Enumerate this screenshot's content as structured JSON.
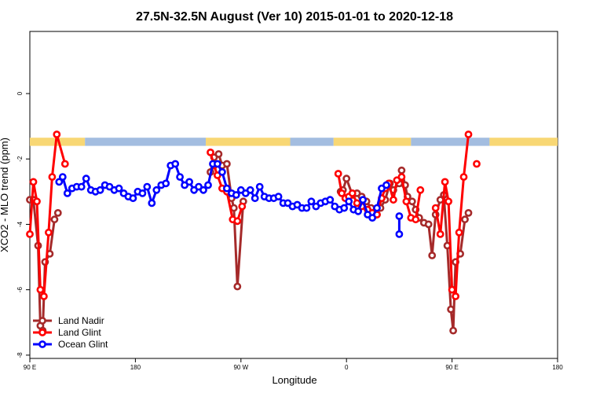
{
  "chart_data": {
    "type": "line",
    "title": "27.5N-32.5N August (Ver 10)   2015-01-01 to 2020-12-18",
    "xlabel": "Longitude",
    "ylabel": "XCO2 - MLO trend (ppm)",
    "x_ticks": [
      {
        "value": 90,
        "label": "90 E"
      },
      {
        "value": 180,
        "label": "180"
      },
      {
        "value": 270,
        "label": "90 W"
      },
      {
        "value": 360,
        "label": "0"
      },
      {
        "value": 450,
        "label": "90 E"
      },
      {
        "value": 540,
        "label": "180"
      }
    ],
    "y_ticks": [
      0,
      -2,
      -4,
      -6,
      -8
    ],
    "xlim": [
      90,
      540
    ],
    "ylim": [
      -8.1,
      1.9
    ],
    "legend_position": "bottom-left",
    "colors": {
      "land_nadir": "#a52a2a",
      "land_glint": "#ff0000",
      "ocean_glint": "#0000ff",
      "land_band": "#f8d774",
      "ocean_band": "#a3bde0"
    },
    "surface_band": {
      "y_top": -1.35,
      "y_bottom": -1.6,
      "segments": [
        {
          "type": "land",
          "start": 90,
          "end": 137
        },
        {
          "type": "ocean",
          "start": 137,
          "end": 240
        },
        {
          "type": "land",
          "start": 240,
          "end": 312
        },
        {
          "type": "ocean",
          "start": 312,
          "end": 349
        },
        {
          "type": "land",
          "start": 349,
          "end": 415
        },
        {
          "type": "ocean",
          "start": 415,
          "end": 482
        },
        {
          "type": "land",
          "start": 482,
          "end": 540
        }
      ]
    },
    "series": [
      {
        "name": "Land Nadir",
        "key": "land_nadir",
        "segments": [
          [
            [
              90,
              -3.25
            ],
            [
              93,
              -3.25
            ],
            [
              97,
              -4.65
            ],
            [
              99,
              -7.1
            ],
            [
              101,
              -7.25
            ],
            [
              103,
              -5.15
            ],
            [
              107,
              -4.9
            ],
            [
              111,
              -3.85
            ],
            [
              114,
              -3.65
            ]
          ],
          [
            [
              244,
              -2.4
            ],
            [
              247,
              -1.95
            ],
            [
              251,
              -1.85
            ],
            [
              254,
              -2.2
            ],
            [
              258,
              -2.15
            ],
            [
              262,
              -3.2
            ],
            [
              264,
              -3.5
            ],
            [
              267,
              -5.9
            ],
            [
              272,
              -3.3
            ]
          ],
          [
            [
              355,
              -3.0
            ],
            [
              357,
              -2.95
            ],
            [
              360,
              -2.6
            ],
            [
              365,
              -3.1
            ],
            [
              369,
              -3.05
            ],
            [
              373,
              -3.15
            ],
            [
              377,
              -3.3
            ],
            [
              381,
              -3.5
            ],
            [
              383,
              -3.75
            ],
            [
              386,
              -3.7
            ],
            [
              389,
              -3.5
            ],
            [
              393,
              -3.25
            ],
            [
              397,
              -2.75
            ],
            [
              400,
              -2.95
            ],
            [
              405,
              -2.75
            ],
            [
              407,
              -2.35
            ],
            [
              410,
              -2.8
            ],
            [
              412,
              -3.15
            ],
            [
              416,
              -3.3
            ],
            [
              419,
              -3.55
            ],
            [
              422,
              -3.8
            ],
            [
              426,
              -3.95
            ],
            [
              430,
              -4.0
            ],
            [
              433,
              -4.95
            ],
            [
              436,
              -3.7
            ],
            [
              440,
              -3.25
            ],
            [
              443,
              -3.1
            ],
            [
              446,
              -4.65
            ],
            [
              449,
              -6.6
            ],
            [
              451,
              -7.25
            ],
            [
              453,
              -5.15
            ],
            [
              457,
              -4.9
            ],
            [
              461,
              -3.85
            ],
            [
              464,
              -3.65
            ]
          ]
        ]
      },
      {
        "name": "Land Glint",
        "key": "land_glint",
        "segments": [
          [
            [
              90,
              -4.3
            ],
            [
              93,
              -2.7
            ],
            [
              96,
              -3.3
            ],
            [
              99,
              -6.0
            ],
            [
              102,
              -6.2
            ],
            [
              106,
              -4.25
            ],
            [
              109,
              -2.55
            ],
            [
              113,
              -1.25
            ],
            [
              120,
              -2.15
            ]
          ],
          [
            [
              244,
              -1.8
            ],
            [
              247,
              -2.2
            ],
            [
              250,
              -2.5
            ],
            [
              254,
              -2.9
            ],
            [
              258,
              -3.0
            ],
            [
              263,
              -3.85
            ],
            [
              267,
              -3.9
            ],
            [
              271,
              -3.45
            ]
          ],
          [
            [
              353,
              -2.45
            ],
            [
              356,
              -3.05
            ],
            [
              359,
              -3.2
            ],
            [
              362,
              -3.15
            ],
            [
              365,
              -3.05
            ],
            [
              369,
              -3.35
            ],
            [
              373,
              -3.45
            ],
            [
              378,
              -3.55
            ],
            [
              382,
              -3.65
            ],
            [
              386,
              -3.7
            ],
            [
              390,
              -3.2
            ],
            [
              393,
              -2.9
            ],
            [
              396,
              -2.75
            ],
            [
              400,
              -3.25
            ],
            [
              403,
              -2.65
            ],
            [
              407,
              -2.55
            ],
            [
              411,
              -3.3
            ],
            [
              415,
              -3.8
            ],
            [
              419,
              -3.85
            ],
            [
              423,
              -2.95
            ]
          ],
          [
            [
              436,
              -3.5
            ],
            [
              440,
              -4.3
            ],
            [
              444,
              -2.7
            ],
            [
              447,
              -3.3
            ],
            [
              450,
              -6.0
            ],
            [
              453,
              -6.2
            ],
            [
              456,
              -4.25
            ],
            [
              460,
              -2.55
            ],
            [
              464,
              -1.25
            ]
          ],
          [
            [
              471,
              -2.15
            ]
          ]
        ]
      },
      {
        "name": "Ocean Glint",
        "key": "ocean_glint",
        "segments": [
          [
            [
              115,
              -2.7
            ],
            [
              118,
              -2.55
            ],
            [
              122,
              -3.05
            ],
            [
              126,
              -2.9
            ],
            [
              130,
              -2.85
            ],
            [
              134,
              -2.85
            ],
            [
              138,
              -2.6
            ],
            [
              142,
              -2.95
            ],
            [
              146,
              -3.0
            ],
            [
              150,
              -2.95
            ],
            [
              154,
              -2.8
            ],
            [
              158,
              -2.85
            ],
            [
              162,
              -2.95
            ],
            [
              166,
              -2.9
            ],
            [
              170,
              -3.05
            ],
            [
              174,
              -3.15
            ],
            [
              178,
              -3.2
            ],
            [
              182,
              -3.0
            ],
            [
              186,
              -3.05
            ],
            [
              190,
              -2.85
            ],
            [
              194,
              -3.35
            ],
            [
              198,
              -2.95
            ],
            [
              202,
              -2.8
            ],
            [
              206,
              -2.75
            ],
            [
              210,
              -2.2
            ],
            [
              214,
              -2.15
            ],
            [
              218,
              -2.55
            ],
            [
              222,
              -2.8
            ],
            [
              226,
              -2.7
            ],
            [
              230,
              -2.95
            ],
            [
              234,
              -2.85
            ],
            [
              238,
              -2.95
            ],
            [
              242,
              -2.8
            ],
            [
              246,
              -2.15
            ],
            [
              250,
              -2.15
            ],
            [
              254,
              -2.4
            ],
            [
              258,
              -2.9
            ],
            [
              262,
              -3.05
            ],
            [
              266,
              -3.1
            ],
            [
              270,
              -2.95
            ],
            [
              274,
              -3.05
            ],
            [
              278,
              -2.95
            ],
            [
              282,
              -3.2
            ],
            [
              286,
              -2.85
            ],
            [
              290,
              -3.15
            ],
            [
              294,
              -3.2
            ],
            [
              298,
              -3.2
            ],
            [
              302,
              -3.15
            ],
            [
              306,
              -3.35
            ],
            [
              310,
              -3.35
            ],
            [
              314,
              -3.45
            ],
            [
              318,
              -3.4
            ],
            [
              322,
              -3.5
            ],
            [
              326,
              -3.5
            ],
            [
              330,
              -3.3
            ],
            [
              334,
              -3.45
            ],
            [
              338,
              -3.35
            ],
            [
              342,
              -3.3
            ],
            [
              346,
              -3.25
            ],
            [
              350,
              -3.45
            ],
            [
              354,
              -3.55
            ],
            [
              358,
              -3.5
            ],
            [
              362,
              -3.3
            ],
            [
              366,
              -3.55
            ],
            [
              370,
              -3.6
            ],
            [
              374,
              -3.25
            ],
            [
              378,
              -3.7
            ],
            [
              382,
              -3.8
            ],
            [
              386,
              -3.5
            ],
            [
              390,
              -2.9
            ],
            [
              394,
              -2.8
            ]
          ],
          [
            [
              405,
              -3.75
            ],
            [
              405,
              -4.3
            ]
          ]
        ]
      }
    ]
  }
}
